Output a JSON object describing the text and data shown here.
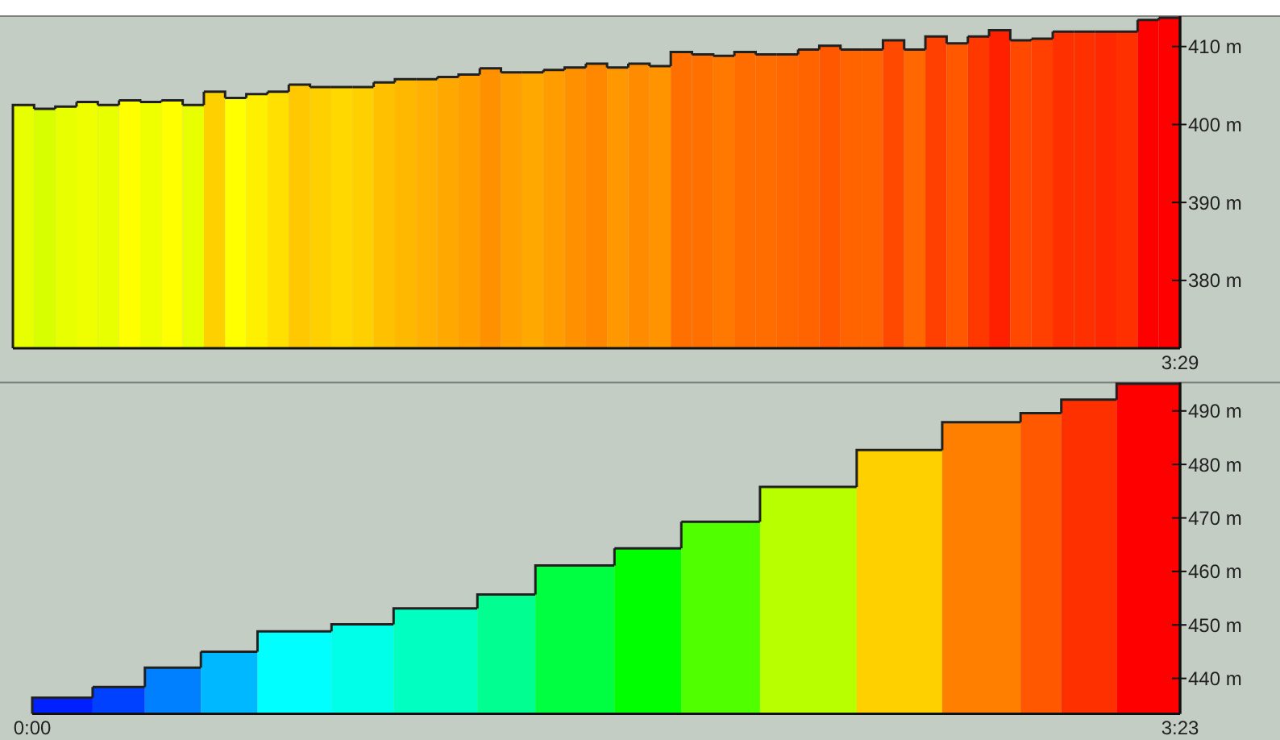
{
  "chart_data": [
    {
      "type": "bar",
      "categories": [
        null,
        null,
        null,
        null,
        null,
        null,
        null,
        null,
        null,
        null,
        null,
        null,
        null,
        null,
        null,
        null,
        null,
        null,
        null,
        null,
        null,
        null,
        null,
        null,
        null,
        null,
        null,
        null,
        null,
        null,
        null,
        null,
        null,
        null,
        null,
        null,
        null,
        null,
        null,
        null,
        null,
        null,
        null,
        null,
        null,
        null,
        null,
        null,
        null,
        null,
        null,
        null,
        null,
        null,
        null
      ],
      "annotations": [
        "3:29"
      ],
      "values": [
        402.5,
        402.0,
        402.3,
        402.9,
        402.5,
        403.1,
        402.9,
        403.1,
        402.5,
        404.2,
        403.4,
        403.9,
        404.2,
        405.1,
        404.8,
        404.8,
        404.8,
        405.4,
        405.8,
        405.8,
        406.1,
        406.4,
        407.2,
        406.7,
        406.7,
        407.0,
        407.3,
        407.8,
        407.3,
        407.8,
        407.5,
        409.3,
        409.0,
        408.8,
        409.3,
        409.0,
        409.0,
        409.6,
        410.1,
        409.6,
        409.6,
        410.8,
        409.6,
        411.3,
        410.4,
        411.3,
        412.1,
        410.8,
        411.0,
        411.9,
        411.9,
        411.9,
        411.9,
        413.4,
        413.7
      ],
      "colors": [
        "#e8ff00",
        "#d8ff00",
        "#e8ff00",
        "#f0ff00",
        "#e8ff00",
        "#ffff00",
        "#f0ff00",
        "#ffff00",
        "#e8ff00",
        "#ffd000",
        "#ffff00",
        "#fff000",
        "#ffe000",
        "#ffc800",
        "#ffd000",
        "#ffd800",
        "#ffd000",
        "#ffc000",
        "#ffb800",
        "#ffb000",
        "#ffa800",
        "#ffa000",
        "#ff9000",
        "#ffa000",
        "#ffa800",
        "#ff9c00",
        "#ff9000",
        "#ff8800",
        "#ff9800",
        "#ff8c00",
        "#ff9400",
        "#ff7000",
        "#ff7000",
        "#ff7800",
        "#ff6c00",
        "#ff6c00",
        "#ff6800",
        "#ff6400",
        "#ff5800",
        "#ff6400",
        "#ff6400",
        "#ff4800",
        "#ff6800",
        "#ff4000",
        "#ff5800",
        "#ff3800",
        "#ff2000",
        "#ff4800",
        "#ff4000",
        "#ff3000",
        "#ff3000",
        "#ff2800",
        "#ff3000",
        "#ff0000",
        "#ff0000"
      ],
      "ylim": [
        371.3,
        413.9
      ],
      "yticks": [
        {
          "value": 380,
          "label": "380 m"
        },
        {
          "value": 390,
          "label": "390 m"
        },
        {
          "value": 400,
          "label": "400 m"
        },
        {
          "value": 410,
          "label": "410 m"
        }
      ]
    },
    {
      "type": "histogram",
      "bins": [
        0,
        0.178,
        0.332,
        0.497,
        0.664,
        0.882,
        1.065,
        1.312,
        1.483,
        1.716,
        1.913,
        2.145,
        2.43,
        2.682,
        2.913,
        3.033,
        3.196,
        3.383
      ],
      "values": [
        436.4,
        438.4,
        442.0,
        445.0,
        448.8,
        450.1,
        453.1,
        455.7,
        461.1,
        464.3,
        469.3,
        475.8,
        482.7,
        487.9,
        489.6,
        492.1,
        495.1
      ],
      "colors": [
        "#0020ff",
        "#0040ff",
        "#0080ff",
        "#00b8ff",
        "#00ffff",
        "#00ffe8",
        "#00ffc0",
        "#00ff90",
        "#00ff40",
        "#00ff00",
        "#50ff00",
        "#b8ff00",
        "#ffd000",
        "#ff8000",
        "#ff5800",
        "#ff3000",
        "#ff0000"
      ],
      "xlim": [
        0,
        3.383
      ],
      "xticks": [
        {
          "value": 0,
          "label": "0:00"
        },
        {
          "value": 3.383,
          "label": "3:23"
        }
      ],
      "ylim": [
        433.4,
        495.3
      ],
      "yticks": [
        {
          "value": 440,
          "label": "440 m"
        },
        {
          "value": 450,
          "label": "450 m"
        },
        {
          "value": 460,
          "label": "460 m"
        },
        {
          "value": 470,
          "label": "470 m"
        },
        {
          "value": 480,
          "label": "480 m"
        },
        {
          "value": 490,
          "label": "490 m"
        }
      ]
    }
  ]
}
